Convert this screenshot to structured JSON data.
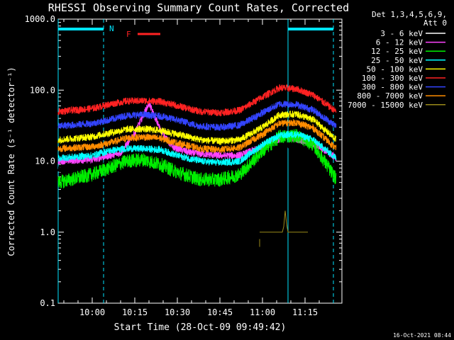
{
  "chart_data": {
    "type": "line",
    "title": "RHESSI Observing Summary Count Rates, Corrected",
    "ylabel": "Corrected Count Rate (s⁻¹ detector⁻¹)",
    "xlabel": "Start Time (28-Oct-09 09:49:42)",
    "yscale": "log",
    "ylim": [
      0.1,
      1000
    ],
    "y_ticks": [
      {
        "value": 0.1,
        "label": "0.1"
      },
      {
        "value": 1,
        "label": "1.0"
      },
      {
        "value": 10,
        "label": "10.0"
      },
      {
        "value": 100,
        "label": "100.0"
      },
      {
        "value": 1000,
        "label": "1000.0"
      }
    ],
    "xlim_min": [
      588,
      688
    ],
    "x_ticks": [
      {
        "value": 600,
        "label": "10:00"
      },
      {
        "value": 615,
        "label": "10:15"
      },
      {
        "value": 630,
        "label": "10:30"
      },
      {
        "value": 645,
        "label": "10:45"
      },
      {
        "value": 660,
        "label": "11:00"
      },
      {
        "value": 675,
        "label": "11:15"
      }
    ],
    "legend": {
      "header": [
        "Det 1,3,4,5,6,9,",
        "Att 0"
      ],
      "position": "top-right",
      "entries": [
        {
          "label": "3 - 6 keV",
          "color": "#ffffff"
        },
        {
          "label": "6 - 12 keV",
          "color": "#ff44ff"
        },
        {
          "label": "12 - 25 keV",
          "color": "#00ee00"
        },
        {
          "label": "25 - 50 keV",
          "color": "#00ffff"
        },
        {
          "label": "50 - 100 keV",
          "color": "#ffff00"
        },
        {
          "label": "100 - 300 keV",
          "color": "#ff2222"
        },
        {
          "label": "300 - 800 keV",
          "color": "#3344ff"
        },
        {
          "label": "800 - 7000 keV",
          "color": "#ff8c00"
        },
        {
          "label": "7000 - 15000 keV",
          "color": "#9a8a1a"
        }
      ]
    },
    "series": [
      {
        "name": "3 - 6 keV",
        "color": "#000000",
        "x": [
          588,
          600,
          610,
          615,
          620,
          625,
          630,
          635,
          645,
          652,
          658,
          665,
          670,
          675,
          680,
          686
        ],
        "y": [
          7.5,
          8,
          12,
          30,
          60,
          30,
          15,
          13,
          14,
          11,
          12,
          16,
          17,
          15,
          11,
          7.5
        ]
      },
      {
        "name": "6 - 12 keV",
        "color": "#ff44ff",
        "x": [
          588,
          600,
          610,
          615,
          620,
          624,
          628,
          635,
          645,
          652,
          660,
          668,
          673,
          680,
          686
        ],
        "y": [
          10,
          10.5,
          13,
          25,
          65,
          28,
          16,
          13,
          12,
          12,
          16,
          22,
          20,
          16,
          11
        ]
      },
      {
        "name": "12 - 25 keV",
        "color": "#00ee00",
        "x": [
          588,
          600,
          606,
          612,
          618,
          624,
          630,
          638,
          645,
          652,
          660,
          666,
          672,
          678,
          686
        ],
        "y": [
          5,
          6.5,
          8,
          10,
          10.5,
          9,
          7,
          5.5,
          5.5,
          6.5,
          14,
          22,
          23,
          17,
          5.5
        ]
      },
      {
        "name": "25 - 50 keV",
        "color": "#00ffff",
        "x": [
          588,
          600,
          606,
          612,
          618,
          624,
          630,
          638,
          645,
          652,
          660,
          666,
          672,
          678,
          686
        ],
        "y": [
          11,
          12,
          14,
          15,
          15,
          14.5,
          12,
          10,
          9.5,
          10,
          17,
          23,
          24,
          20,
          11
        ]
      },
      {
        "name": "50 - 100 keV",
        "color": "#ffff00",
        "x": [
          588,
          600,
          606,
          612,
          618,
          624,
          630,
          638,
          645,
          652,
          660,
          666,
          672,
          678,
          686
        ],
        "y": [
          20,
          22,
          25,
          28,
          28.5,
          27,
          24,
          20,
          19,
          20,
          30,
          45,
          46,
          38,
          20
        ]
      },
      {
        "name": "100 - 300 keV",
        "color": "#ff2222",
        "x": [
          588,
          600,
          606,
          612,
          618,
          624,
          630,
          638,
          645,
          652,
          660,
          666,
          672,
          678,
          686
        ],
        "y": [
          50,
          55,
          63,
          70,
          71,
          69,
          60,
          50,
          48,
          52,
          80,
          108,
          104,
          85,
          50
        ]
      },
      {
        "name": "300 - 800 keV",
        "color": "#3344ff",
        "x": [
          588,
          600,
          606,
          612,
          618,
          624,
          630,
          638,
          645,
          652,
          660,
          666,
          672,
          678,
          686
        ],
        "y": [
          31,
          34,
          38,
          44,
          45,
          43,
          38,
          31,
          30,
          32,
          48,
          64,
          63,
          52,
          31
        ]
      },
      {
        "name": "800 - 7000 keV",
        "color": "#ff8c00",
        "x": [
          588,
          600,
          606,
          612,
          618,
          624,
          630,
          638,
          645,
          652,
          660,
          666,
          672,
          678,
          686
        ],
        "y": [
          15,
          16,
          18,
          21,
          22,
          21,
          18,
          15,
          14.5,
          15.5,
          24,
          34,
          35,
          29,
          15
        ]
      },
      {
        "name": "7000 - 15000 keV",
        "color": "#9a8a1a",
        "x": [
          659,
          662,
          665,
          667,
          667.5,
          668,
          668.5,
          669,
          671,
          676
        ],
        "y": [
          1,
          1,
          1,
          1,
          1.2,
          2,
          1.3,
          1,
          1,
          1
        ]
      },
      {
        "name": "7000 - 15000 keV (low)",
        "color": "#9a8a1a",
        "x": [
          659,
          659,
          659
        ],
        "y": [
          0.62,
          0.8,
          0.7
        ]
      }
    ],
    "annotations": {
      "N": "N",
      "F": "F",
      "vlines_min": [
        {
          "x": 588,
          "style": "solid"
        },
        {
          "x": 604,
          "style": "dashed"
        },
        {
          "x": 669,
          "style": "solid"
        },
        {
          "x": 685,
          "style": "dashed"
        }
      ],
      "night_bars_min": [
        [
          588,
          604
        ],
        [
          669,
          685
        ]
      ],
      "flare_bar_min": [
        616,
        624
      ],
      "night_label_at_min": 606,
      "flare_label_at_min": 612
    }
  },
  "footer": {
    "timestamp": "16-Oct-2021 08:44"
  }
}
